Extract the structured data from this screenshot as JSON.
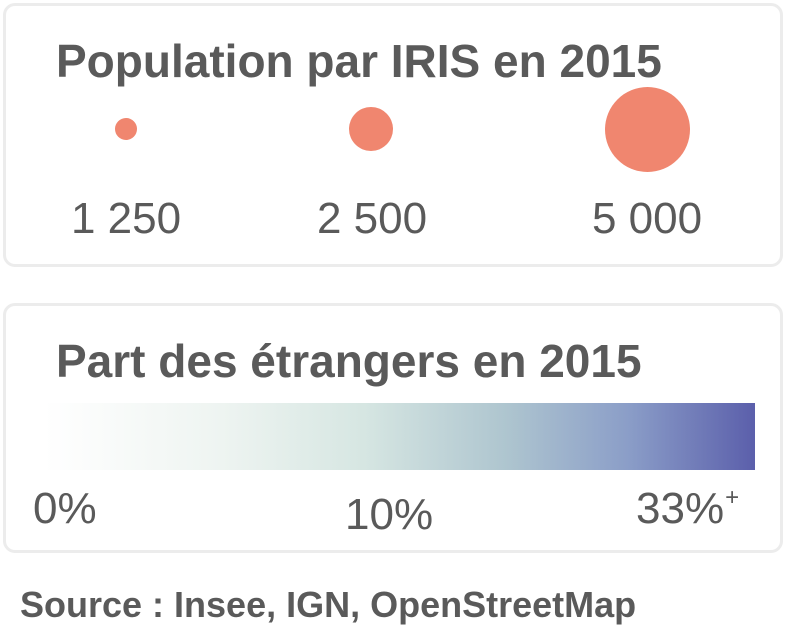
{
  "population_legend": {
    "title": "Population par IRIS en 2015",
    "bubble_color": "#f0866f",
    "items": [
      {
        "value": 1250,
        "label": "1 250"
      },
      {
        "value": 2500,
        "label": "2 500"
      },
      {
        "value": 5000,
        "label": "5 000"
      }
    ]
  },
  "foreigners_legend": {
    "title": "Part des étrangers en 2015",
    "color_start": "#ffffff",
    "color_end": "#5b5fab",
    "ticks": [
      {
        "label": "0%"
      },
      {
        "label": "10%"
      },
      {
        "label": "33%",
        "suffix": "+"
      }
    ]
  },
  "source": "Source : Insee, IGN, OpenStreetMap"
}
